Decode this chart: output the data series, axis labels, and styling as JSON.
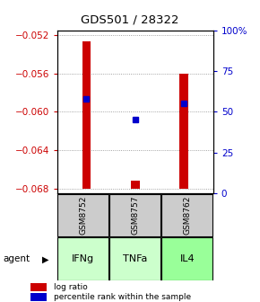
{
  "title": "GDS501 / 28322",
  "samples": [
    "GSM8752",
    "GSM8757",
    "GSM8762"
  ],
  "agents": [
    "IFNg",
    "TNFa",
    "IL4"
  ],
  "log_ratios": [
    -0.0527,
    -0.0672,
    -0.056
  ],
  "baseline": -0.068,
  "percentile_ranks": [
    58,
    45,
    55
  ],
  "ylim_left": [
    -0.0685,
    -0.0515
  ],
  "ylim_right": [
    0,
    100
  ],
  "yticks_left": [
    -0.052,
    -0.056,
    -0.06,
    -0.064,
    -0.068
  ],
  "yticks_right": [
    0,
    25,
    50,
    75,
    100
  ],
  "ytick_labels_right": [
    "0",
    "25",
    "50",
    "75",
    "100%"
  ],
  "bar_color": "#cc0000",
  "dot_color": "#0000cc",
  "agent_colors": [
    "#ccffcc",
    "#ccffcc",
    "#99ff99"
  ],
  "sample_box_color": "#cccccc",
  "grid_color": "#888888",
  "left_tick_color": "#cc0000",
  "right_tick_color": "#0000cc"
}
